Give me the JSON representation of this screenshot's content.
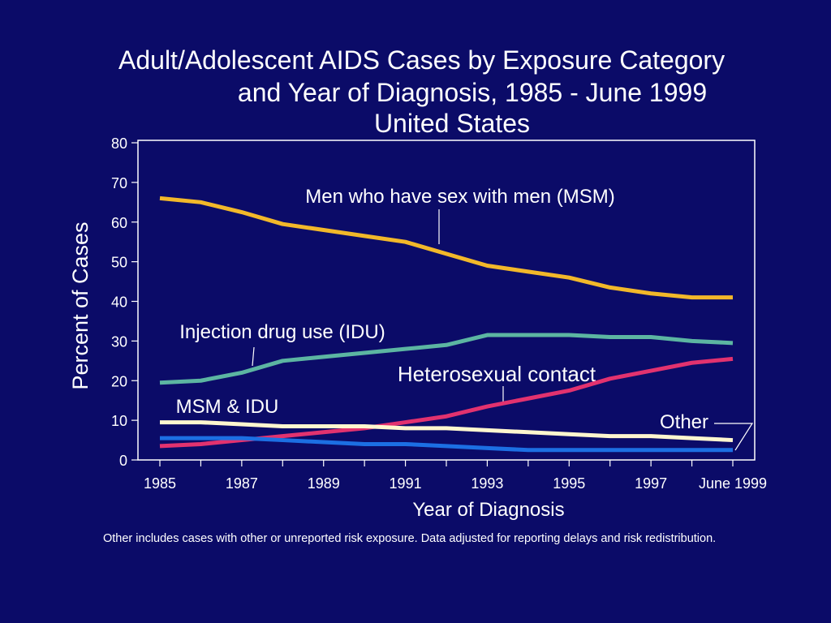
{
  "chart_data": {
    "type": "line",
    "title": [
      "Adult/Adolescent AIDS Cases by Exposure Category",
      "and Year of Diagnosis, 1985 - June 1999",
      "United States"
    ],
    "x_label": "Year of Diagnosis",
    "y_label": "Percent of Cases",
    "categories": [
      "1985",
      null,
      "1987",
      null,
      "1989",
      null,
      "1991",
      null,
      "1993",
      null,
      "1995",
      null,
      "1997",
      null,
      "June 1999"
    ],
    "ylim": [
      0,
      80
    ],
    "yticks": [
      0,
      10,
      20,
      30,
      40,
      50,
      60,
      70,
      80
    ],
    "series": [
      {
        "name": "Men who have sex with men (MSM)",
        "color": "#f2b82a",
        "values": [
          66,
          65,
          62.5,
          59.5,
          58,
          56.5,
          55,
          52,
          49,
          47.5,
          46,
          43.5,
          42,
          41,
          41
        ]
      },
      {
        "name": "Injection drug use (IDU)",
        "color": "#5cb5a2",
        "values": [
          19.5,
          20,
          22,
          25,
          26,
          27,
          28,
          29,
          31.5,
          31.5,
          31.5,
          31,
          31,
          30,
          29.5
        ]
      },
      {
        "name": "Heterosexual contact",
        "color": "#e2326f",
        "values": [
          3.5,
          4,
          5,
          6,
          7,
          8,
          9.5,
          11,
          13.5,
          15.5,
          17.5,
          20.5,
          22.5,
          24.5,
          25.5
        ]
      },
      {
        "name": "MSM & IDU",
        "color": "#fff7cf",
        "values": [
          9.5,
          9.5,
          9,
          8.5,
          8.5,
          8.5,
          8,
          8,
          7.5,
          7,
          6.5,
          6,
          6,
          5.5,
          5
        ]
      },
      {
        "name": "Other",
        "color": "#1c6fe3",
        "values": [
          5.5,
          5.5,
          5.5,
          5,
          4.5,
          4,
          4,
          3.5,
          3,
          2.5,
          2.5,
          2.5,
          2.5,
          2.5,
          2.5
        ]
      }
    ],
    "footnote": "Other includes cases with other or unreported risk exposure. Data adjusted for reporting delays and risk redistribution."
  }
}
